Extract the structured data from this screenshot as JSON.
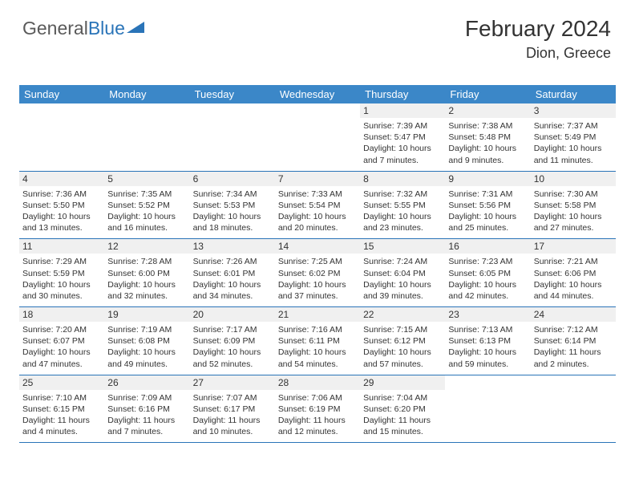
{
  "logo": {
    "part1": "General",
    "part2": "Blue"
  },
  "header": {
    "month_title": "February 2024",
    "location": "Dion, Greece"
  },
  "colors": {
    "header_bg": "#3b87c8",
    "header_text": "#ffffff",
    "border": "#2a74b8",
    "daynum_bg": "#f0f0f0",
    "text": "#333333",
    "logo_gray": "#5a5a5a",
    "logo_blue": "#2a74b8"
  },
  "day_labels": [
    "Sunday",
    "Monday",
    "Tuesday",
    "Wednesday",
    "Thursday",
    "Friday",
    "Saturday"
  ],
  "weeks": [
    [
      {
        "n": "",
        "sr": "",
        "ss": "",
        "dl": ""
      },
      {
        "n": "",
        "sr": "",
        "ss": "",
        "dl": ""
      },
      {
        "n": "",
        "sr": "",
        "ss": "",
        "dl": ""
      },
      {
        "n": "",
        "sr": "",
        "ss": "",
        "dl": ""
      },
      {
        "n": "1",
        "sr": "Sunrise: 7:39 AM",
        "ss": "Sunset: 5:47 PM",
        "dl": "Daylight: 10 hours and 7 minutes."
      },
      {
        "n": "2",
        "sr": "Sunrise: 7:38 AM",
        "ss": "Sunset: 5:48 PM",
        "dl": "Daylight: 10 hours and 9 minutes."
      },
      {
        "n": "3",
        "sr": "Sunrise: 7:37 AM",
        "ss": "Sunset: 5:49 PM",
        "dl": "Daylight: 10 hours and 11 minutes."
      }
    ],
    [
      {
        "n": "4",
        "sr": "Sunrise: 7:36 AM",
        "ss": "Sunset: 5:50 PM",
        "dl": "Daylight: 10 hours and 13 minutes."
      },
      {
        "n": "5",
        "sr": "Sunrise: 7:35 AM",
        "ss": "Sunset: 5:52 PM",
        "dl": "Daylight: 10 hours and 16 minutes."
      },
      {
        "n": "6",
        "sr": "Sunrise: 7:34 AM",
        "ss": "Sunset: 5:53 PM",
        "dl": "Daylight: 10 hours and 18 minutes."
      },
      {
        "n": "7",
        "sr": "Sunrise: 7:33 AM",
        "ss": "Sunset: 5:54 PM",
        "dl": "Daylight: 10 hours and 20 minutes."
      },
      {
        "n": "8",
        "sr": "Sunrise: 7:32 AM",
        "ss": "Sunset: 5:55 PM",
        "dl": "Daylight: 10 hours and 23 minutes."
      },
      {
        "n": "9",
        "sr": "Sunrise: 7:31 AM",
        "ss": "Sunset: 5:56 PM",
        "dl": "Daylight: 10 hours and 25 minutes."
      },
      {
        "n": "10",
        "sr": "Sunrise: 7:30 AM",
        "ss": "Sunset: 5:58 PM",
        "dl": "Daylight: 10 hours and 27 minutes."
      }
    ],
    [
      {
        "n": "11",
        "sr": "Sunrise: 7:29 AM",
        "ss": "Sunset: 5:59 PM",
        "dl": "Daylight: 10 hours and 30 minutes."
      },
      {
        "n": "12",
        "sr": "Sunrise: 7:28 AM",
        "ss": "Sunset: 6:00 PM",
        "dl": "Daylight: 10 hours and 32 minutes."
      },
      {
        "n": "13",
        "sr": "Sunrise: 7:26 AM",
        "ss": "Sunset: 6:01 PM",
        "dl": "Daylight: 10 hours and 34 minutes."
      },
      {
        "n": "14",
        "sr": "Sunrise: 7:25 AM",
        "ss": "Sunset: 6:02 PM",
        "dl": "Daylight: 10 hours and 37 minutes."
      },
      {
        "n": "15",
        "sr": "Sunrise: 7:24 AM",
        "ss": "Sunset: 6:04 PM",
        "dl": "Daylight: 10 hours and 39 minutes."
      },
      {
        "n": "16",
        "sr": "Sunrise: 7:23 AM",
        "ss": "Sunset: 6:05 PM",
        "dl": "Daylight: 10 hours and 42 minutes."
      },
      {
        "n": "17",
        "sr": "Sunrise: 7:21 AM",
        "ss": "Sunset: 6:06 PM",
        "dl": "Daylight: 10 hours and 44 minutes."
      }
    ],
    [
      {
        "n": "18",
        "sr": "Sunrise: 7:20 AM",
        "ss": "Sunset: 6:07 PM",
        "dl": "Daylight: 10 hours and 47 minutes."
      },
      {
        "n": "19",
        "sr": "Sunrise: 7:19 AM",
        "ss": "Sunset: 6:08 PM",
        "dl": "Daylight: 10 hours and 49 minutes."
      },
      {
        "n": "20",
        "sr": "Sunrise: 7:17 AM",
        "ss": "Sunset: 6:09 PM",
        "dl": "Daylight: 10 hours and 52 minutes."
      },
      {
        "n": "21",
        "sr": "Sunrise: 7:16 AM",
        "ss": "Sunset: 6:11 PM",
        "dl": "Daylight: 10 hours and 54 minutes."
      },
      {
        "n": "22",
        "sr": "Sunrise: 7:15 AM",
        "ss": "Sunset: 6:12 PM",
        "dl": "Daylight: 10 hours and 57 minutes."
      },
      {
        "n": "23",
        "sr": "Sunrise: 7:13 AM",
        "ss": "Sunset: 6:13 PM",
        "dl": "Daylight: 10 hours and 59 minutes."
      },
      {
        "n": "24",
        "sr": "Sunrise: 7:12 AM",
        "ss": "Sunset: 6:14 PM",
        "dl": "Daylight: 11 hours and 2 minutes."
      }
    ],
    [
      {
        "n": "25",
        "sr": "Sunrise: 7:10 AM",
        "ss": "Sunset: 6:15 PM",
        "dl": "Daylight: 11 hours and 4 minutes."
      },
      {
        "n": "26",
        "sr": "Sunrise: 7:09 AM",
        "ss": "Sunset: 6:16 PM",
        "dl": "Daylight: 11 hours and 7 minutes."
      },
      {
        "n": "27",
        "sr": "Sunrise: 7:07 AM",
        "ss": "Sunset: 6:17 PM",
        "dl": "Daylight: 11 hours and 10 minutes."
      },
      {
        "n": "28",
        "sr": "Sunrise: 7:06 AM",
        "ss": "Sunset: 6:19 PM",
        "dl": "Daylight: 11 hours and 12 minutes."
      },
      {
        "n": "29",
        "sr": "Sunrise: 7:04 AM",
        "ss": "Sunset: 6:20 PM",
        "dl": "Daylight: 11 hours and 15 minutes."
      },
      {
        "n": "",
        "sr": "",
        "ss": "",
        "dl": ""
      },
      {
        "n": "",
        "sr": "",
        "ss": "",
        "dl": ""
      }
    ]
  ]
}
